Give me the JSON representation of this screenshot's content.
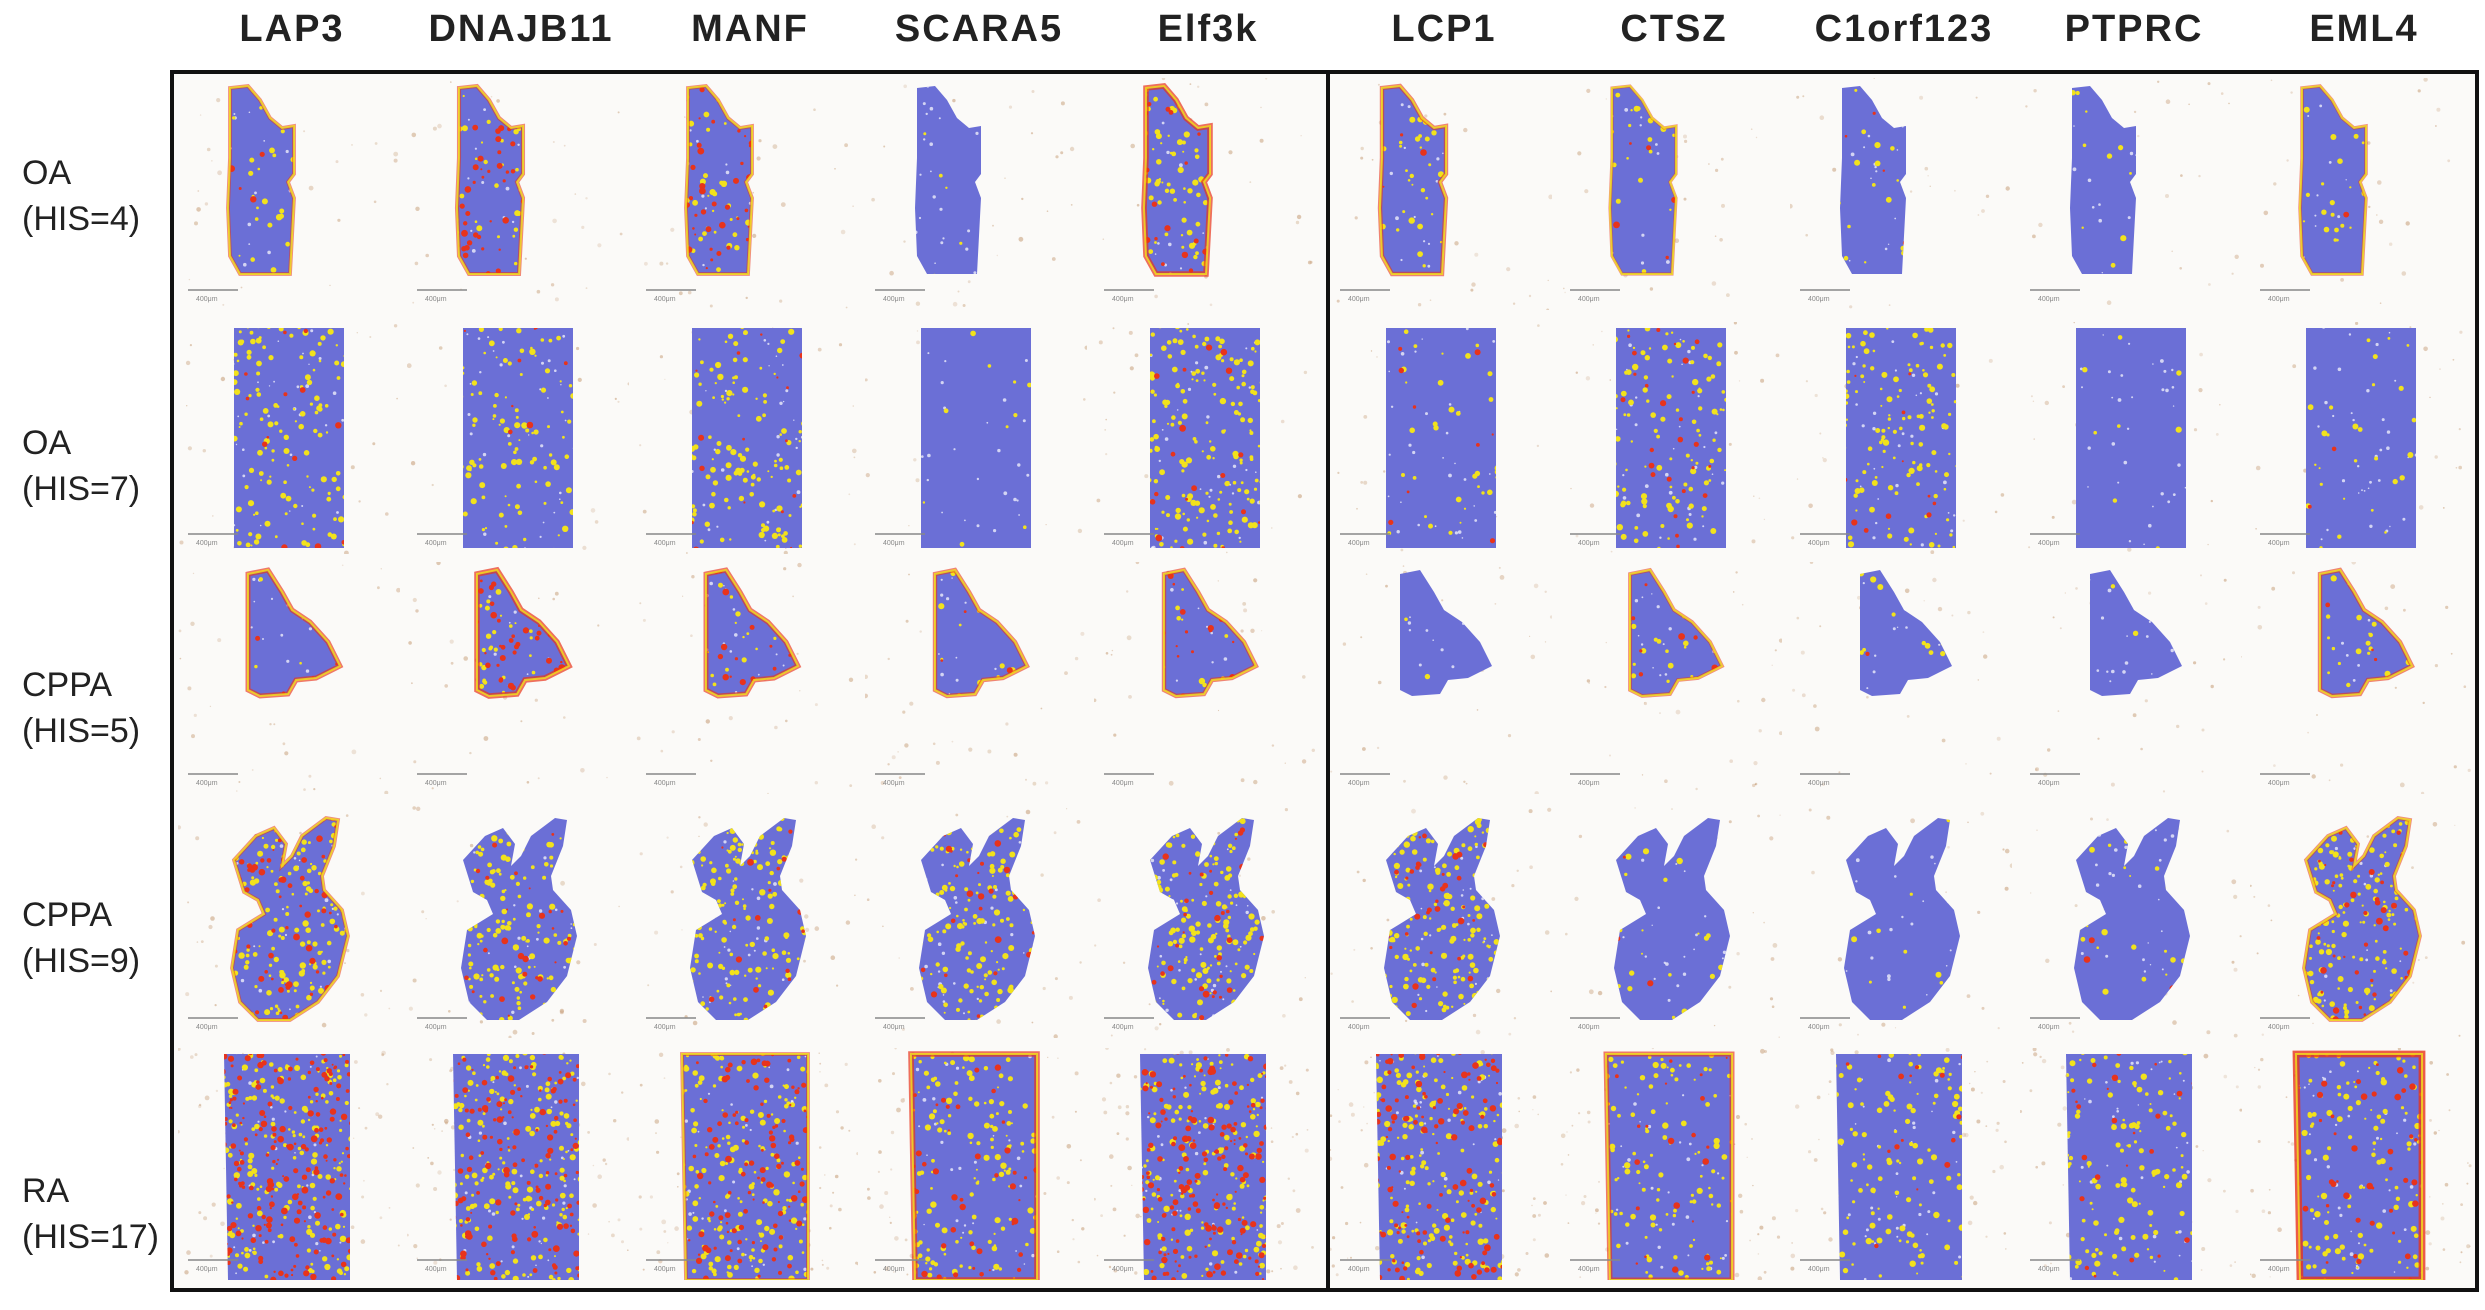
{
  "figure": {
    "columns": [
      "LAP3",
      "DNAJB11",
      "MANF",
      "SCARA5",
      "Elf3k",
      "LCP1",
      "CTSZ",
      "C1orf123",
      "PTPRC",
      "EML4"
    ],
    "rows": [
      {
        "group": "OA",
        "score": "(HIS=4)"
      },
      {
        "group": "OA",
        "score": "(HIS=7)"
      },
      {
        "group": "CPPA",
        "score": "(HIS=5)"
      },
      {
        "group": "CPPA",
        "score": "(HIS=9)"
      },
      {
        "group": "RA",
        "score": "(HIS=17)"
      }
    ],
    "scale_bar_label": "400μm"
  },
  "colors": {
    "low": "#6b6fd6",
    "medium": "#f2e21c",
    "high": "#e8331b",
    "tissue": "#c9a27e",
    "border": "#111111"
  },
  "expression": [
    [
      [
        0.15,
        0.02,
        0.3
      ],
      [
        0.2,
        0.25,
        0.35
      ],
      [
        0.2,
        0.2,
        0.3
      ],
      [
        0.02,
        0,
        0
      ],
      [
        0.35,
        0.1,
        0.6
      ],
      [
        0.2,
        0.05,
        0.4
      ],
      [
        0.12,
        0.02,
        0.2
      ],
      [
        0.1,
        0.01,
        0
      ],
      [
        0.04,
        0,
        0
      ],
      [
        0.1,
        0.01,
        0.25
      ]
    ],
    [
      [
        0.4,
        0.05,
        0
      ],
      [
        0.3,
        0.02,
        0
      ],
      [
        0.35,
        0.04,
        0
      ],
      [
        0.03,
        0,
        0
      ],
      [
        0.45,
        0.05,
        0
      ],
      [
        0.1,
        0.02,
        0
      ],
      [
        0.3,
        0.06,
        0
      ],
      [
        0.3,
        0.03,
        0
      ],
      [
        0.02,
        0,
        0
      ],
      [
        0.08,
        0.01,
        0
      ]
    ],
    [
      [
        0.1,
        0.05,
        0.5
      ],
      [
        0.25,
        0.3,
        0.6
      ],
      [
        0.15,
        0.2,
        0.5
      ],
      [
        0.08,
        0.05,
        0.4
      ],
      [
        0.15,
        0.1,
        0.4
      ],
      [
        0.01,
        0,
        0
      ],
      [
        0.1,
        0.05,
        0.3
      ],
      [
        0.06,
        0.02,
        0
      ],
      [
        0.02,
        0,
        0
      ],
      [
        0.2,
        0.05,
        0.4
      ]
    ],
    [
      [
        0.5,
        0.25,
        0.3
      ],
      [
        0.45,
        0.1,
        0
      ],
      [
        0.5,
        0.05,
        0
      ],
      [
        0.55,
        0.08,
        0
      ],
      [
        0.6,
        0.12,
        0
      ],
      [
        0.5,
        0.15,
        0
      ],
      [
        0.1,
        0.01,
        0
      ],
      [
        0.05,
        0,
        0
      ],
      [
        0.08,
        0.01,
        0
      ],
      [
        0.55,
        0.2,
        0.3
      ]
    ],
    [
      [
        0.4,
        0.5,
        0
      ],
      [
        0.45,
        0.35,
        0
      ],
      [
        0.4,
        0.3,
        0.3
      ],
      [
        0.35,
        0.1,
        0.6
      ],
      [
        0.4,
        0.45,
        0
      ],
      [
        0.45,
        0.3,
        0
      ],
      [
        0.3,
        0.05,
        0.5
      ],
      [
        0.3,
        0.04,
        0
      ],
      [
        0.3,
        0.05,
        0
      ],
      [
        0.3,
        0.12,
        0.8
      ]
    ]
  ]
}
